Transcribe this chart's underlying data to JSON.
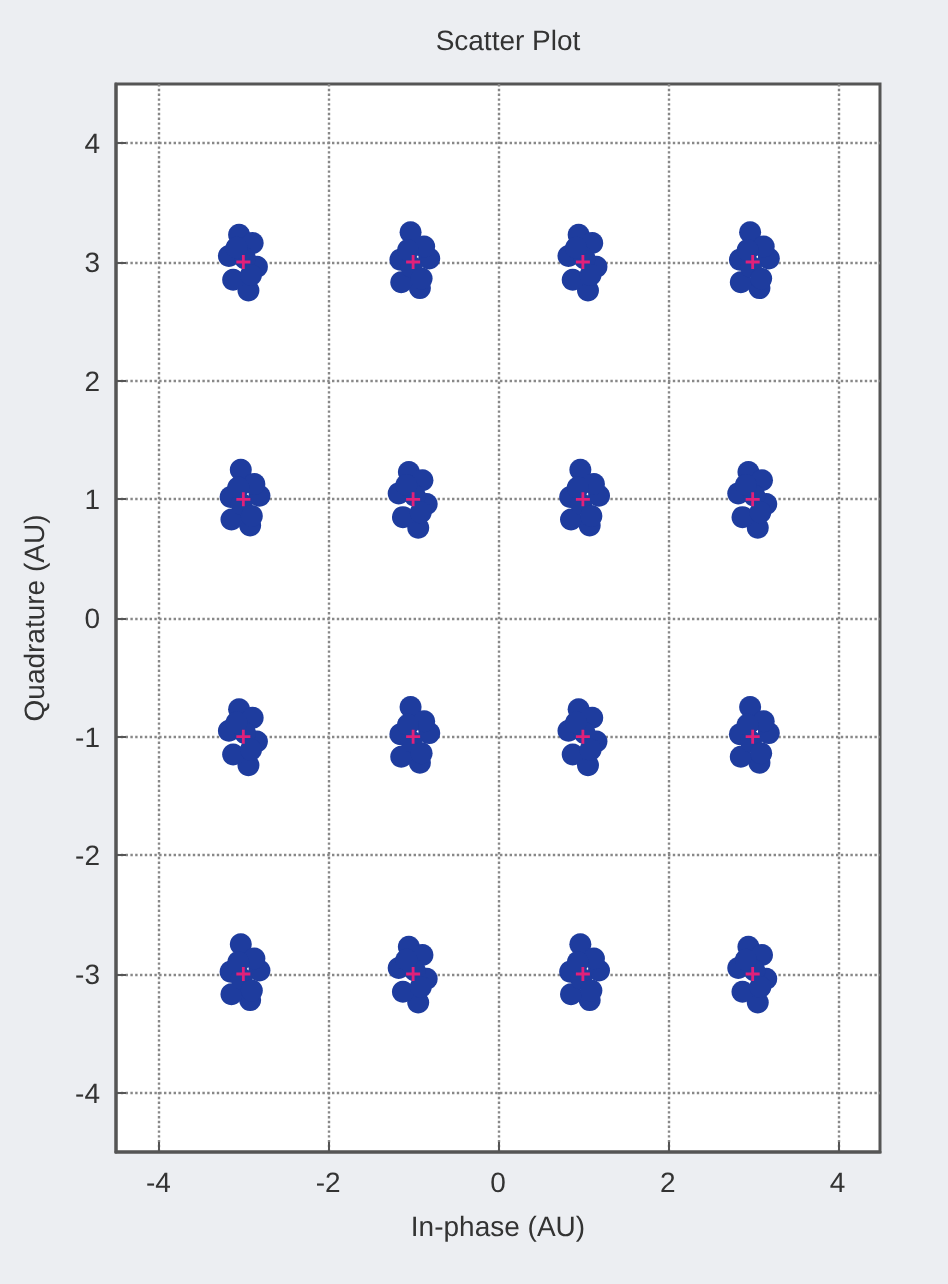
{
  "chart_data": {
    "type": "scatter",
    "title": "Scatter Plot",
    "xlabel": "In-phase (AU)",
    "ylabel": "Quadrature (AU)",
    "xlim": [
      -4.5,
      4.5
    ],
    "ylim": [
      -4.5,
      4.5
    ],
    "xticks": [
      -4,
      -2,
      0,
      2,
      4
    ],
    "yticks": [
      -4,
      -3,
      -2,
      -1,
      0,
      1,
      2,
      3,
      4
    ],
    "grid": true,
    "series": [
      {
        "color": "#1e3c9e",
        "marker": "circle",
        "x": [
          -3.17,
          -2.84,
          -3.05,
          -2.94,
          -3.12,
          -2.89,
          -2.98,
          -3.08,
          -2.91,
          -1.15,
          -0.81,
          -1.03,
          -0.92,
          -1.14,
          -0.87,
          -1.02,
          -1.06,
          -0.9,
          0.83,
          1.16,
          0.95,
          1.06,
          0.88,
          1.11,
          1.02,
          0.92,
          1.09,
          2.85,
          3.19,
          2.97,
          3.08,
          2.86,
          3.13,
          2.98,
          2.94,
          3.1,
          -3.15,
          -2.81,
          -3.03,
          -2.92,
          -3.14,
          -2.87,
          -3.02,
          -3.06,
          -2.9,
          -1.17,
          -0.84,
          -1.05,
          -0.94,
          -1.12,
          -0.89,
          -0.98,
          -1.08,
          -0.91,
          0.85,
          1.19,
          0.97,
          1.08,
          0.86,
          1.13,
          0.98,
          0.94,
          1.1,
          2.83,
          3.16,
          2.95,
          3.06,
          2.88,
          3.11,
          3.02,
          2.92,
          3.09,
          -3.17,
          -2.84,
          -3.05,
          -2.94,
          -3.12,
          -2.89,
          -2.98,
          -3.08,
          -2.91,
          -1.15,
          -0.81,
          -1.03,
          -0.92,
          -1.14,
          -0.87,
          -1.02,
          -1.06,
          -0.9,
          0.83,
          1.16,
          0.95,
          1.06,
          0.88,
          1.11,
          1.02,
          0.92,
          1.09,
          2.85,
          3.19,
          2.97,
          3.08,
          2.86,
          3.13,
          2.98,
          2.94,
          3.1,
          -3.15,
          -2.81,
          -3.03,
          -2.92,
          -3.14,
          -2.87,
          -3.02,
          -3.06,
          -2.9,
          -1.17,
          -0.84,
          -1.05,
          -0.94,
          -1.12,
          -0.89,
          -0.98,
          -1.08,
          -0.91,
          0.85,
          1.19,
          0.97,
          1.08,
          0.86,
          1.13,
          0.98,
          0.94,
          1.1,
          2.83,
          3.16,
          2.95,
          3.06,
          2.88,
          3.11,
          3.02,
          2.92,
          3.09
        ],
        "values": [
          3.05,
          2.96,
          3.23,
          2.76,
          2.85,
          3.16,
          3.03,
          3.12,
          2.89,
          3.02,
          3.03,
          3.25,
          2.78,
          2.83,
          3.13,
          2.96,
          3.1,
          2.86,
          3.05,
          2.96,
          3.23,
          2.76,
          2.85,
          3.16,
          3.03,
          3.12,
          2.89,
          3.02,
          3.03,
          3.25,
          2.78,
          2.83,
          3.13,
          2.96,
          3.1,
          2.86,
          1.02,
          1.03,
          1.25,
          0.78,
          0.83,
          1.13,
          0.96,
          1.1,
          0.86,
          1.05,
          0.96,
          1.23,
          0.76,
          0.85,
          1.16,
          1.03,
          1.12,
          0.89,
          1.02,
          1.03,
          1.25,
          0.78,
          0.83,
          1.13,
          0.96,
          1.1,
          0.86,
          1.05,
          0.96,
          1.23,
          0.76,
          0.85,
          1.16,
          1.03,
          1.12,
          0.89,
          -0.95,
          -1.04,
          -0.77,
          -1.24,
          -1.15,
          -0.84,
          -0.97,
          -0.88,
          -1.11,
          -0.98,
          -0.97,
          -0.75,
          -1.22,
          -1.17,
          -0.87,
          -1.04,
          -0.9,
          -1.14,
          -0.95,
          -1.04,
          -0.77,
          -1.24,
          -1.15,
          -0.84,
          -0.97,
          -0.88,
          -1.11,
          -0.98,
          -0.97,
          -0.75,
          -1.22,
          -1.17,
          -0.87,
          -1.04,
          -0.9,
          -1.14,
          -2.98,
          -2.97,
          -2.75,
          -3.22,
          -3.17,
          -2.87,
          -3.04,
          -2.9,
          -3.14,
          -2.95,
          -3.04,
          -2.77,
          -3.24,
          -3.15,
          -2.84,
          -2.97,
          -2.88,
          -3.11,
          -2.98,
          -2.97,
          -2.75,
          -3.22,
          -3.17,
          -2.87,
          -3.04,
          -2.9,
          -3.14,
          -2.95,
          -3.04,
          -2.77,
          -3.24,
          -3.15,
          -2.84,
          -2.97,
          -2.88,
          -3.11
        ]
      },
      {
        "color": "#e0207a",
        "marker": "cross",
        "x": [
          -3,
          -1,
          1,
          3,
          -3,
          -1,
          1,
          3,
          -3,
          -1,
          1,
          3,
          -3,
          -1,
          1,
          3
        ],
        "values": [
          3,
          3,
          3,
          3,
          1,
          1,
          1,
          1,
          -1,
          -1,
          -1,
          -1,
          -3,
          -3,
          -3,
          -3
        ]
      }
    ]
  }
}
